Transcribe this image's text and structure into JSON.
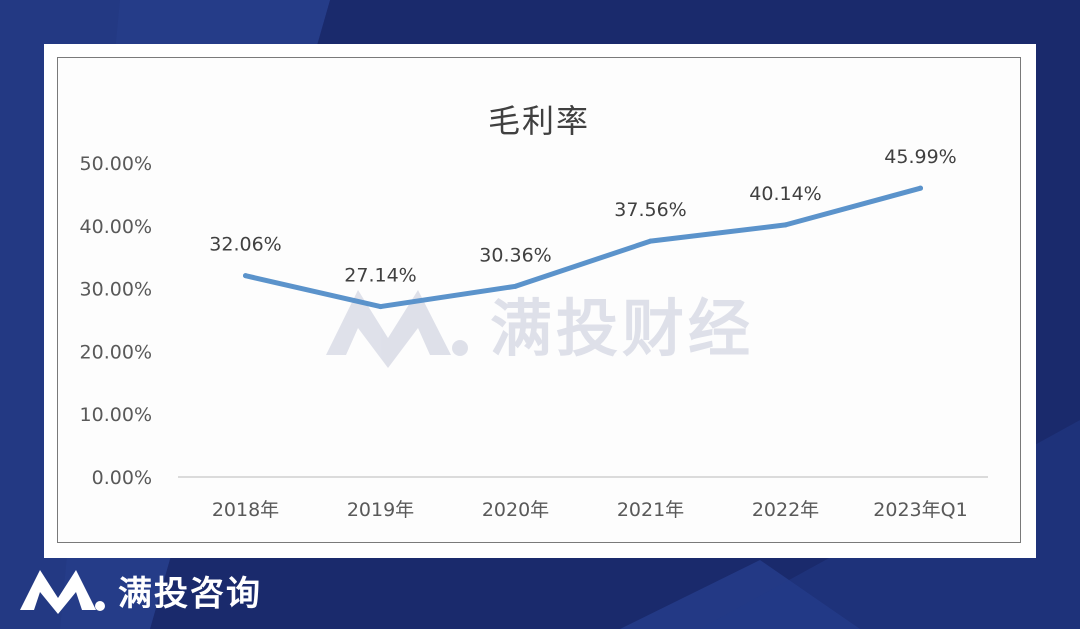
{
  "chart_data": {
    "type": "line",
    "title": "毛利率",
    "categories": [
      "2018年",
      "2019年",
      "2020年",
      "2021年",
      "2022年",
      "2023年Q1"
    ],
    "series": [
      {
        "values": [
          32.06,
          27.14,
          30.36,
          37.56,
          40.14,
          45.99
        ]
      }
    ],
    "data_labels": [
      "32.06%",
      "27.14%",
      "30.36%",
      "37.56%",
      "40.14%",
      "45.99%"
    ],
    "yticks": [
      "0.00%",
      "10.00%",
      "20.00%",
      "30.00%",
      "40.00%",
      "50.00%"
    ],
    "ylim": [
      0,
      50
    ],
    "grid": false,
    "line_color": "#5b93cb"
  },
  "watermark": {
    "text": "满投财经"
  },
  "brand": {
    "text": "满投咨询"
  },
  "colors": {
    "background": "#1a2a6c",
    "card": "#ffffff"
  }
}
